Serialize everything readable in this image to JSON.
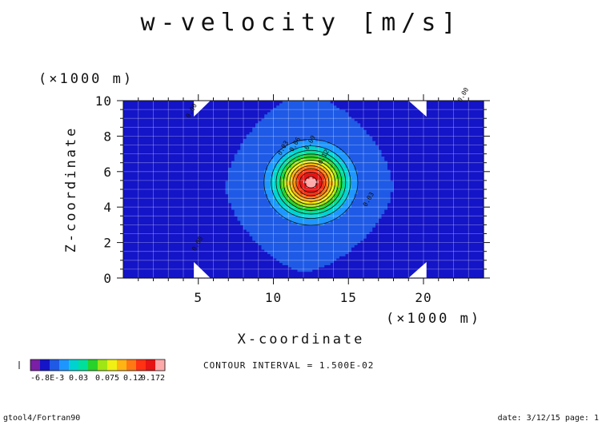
{
  "chart_data": {
    "type": "contour",
    "title": "w-velocity [m/s]",
    "xlabel": "X-coordinate",
    "ylabel": "Z-coordinate",
    "x_unit": "(×1000 m)",
    "y_unit": "(×1000 m)",
    "xlim": [
      0,
      24
    ],
    "ylim": [
      0,
      10
    ],
    "x_ticks": [
      5,
      10,
      15,
      20
    ],
    "y_ticks": [
      0,
      2,
      4,
      6,
      8,
      10
    ],
    "grid": true,
    "contour_interval_text": "CONTOUR INTERVAL = 1.500E-02",
    "field": {
      "peak_center": [
        12.5,
        5.4
      ],
      "peak_value": 0.172,
      "background_value": 0.0,
      "negative_regions": [
        "bottom-left",
        "top-left",
        "bottom-right",
        "top-right"
      ]
    },
    "levels": [
      -0.015,
      0.0,
      0.015,
      0.03,
      0.045,
      0.06,
      0.075,
      0.09,
      0.105,
      0.12,
      0.135,
      0.15,
      0.165
    ],
    "contour_labels": [
      "0.03",
      "0.06",
      "0.09",
      "0.12",
      "0.03",
      "0.00",
      "0.00",
      "0.00"
    ],
    "colorbar": {
      "colors": [
        "#7a1fa6",
        "#1414c8",
        "#1e5ae6",
        "#1e96ff",
        "#00d2d2",
        "#00e09a",
        "#28d228",
        "#a0e614",
        "#f0f014",
        "#ffb414",
        "#ff7814",
        "#ff3214",
        "#e61414",
        "#ffaaaa"
      ],
      "tick_labels": [
        "-6.8E-3",
        "0.03",
        "0.075",
        "0.12",
        "0.172"
      ],
      "min_label": "-6.8E-3"
    }
  },
  "footer": {
    "left": "gtool4/Fortran90",
    "right": "date: 3/12/15 page: 1"
  }
}
